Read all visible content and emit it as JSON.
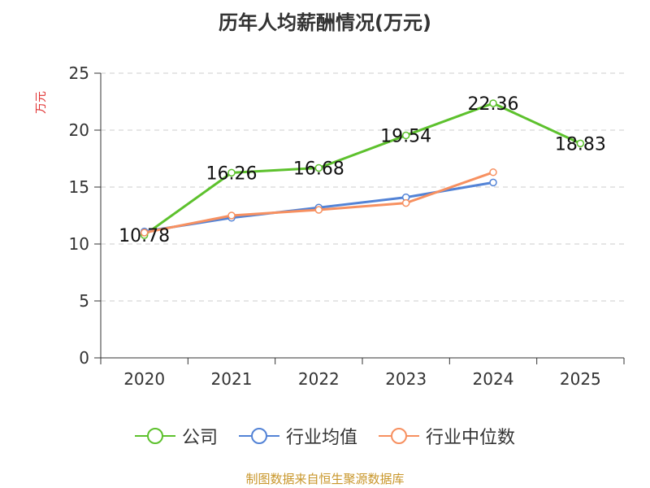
{
  "chart_data": {
    "type": "line",
    "title": "历年人均薪酬情况(万元)",
    "ylabel": "万元",
    "xlabel": "",
    "categories": [
      "2020",
      "2021",
      "2022",
      "2023",
      "2024",
      "2025"
    ],
    "ylim": [
      0,
      25
    ],
    "yticks": [
      0,
      5,
      10,
      15,
      20,
      25
    ],
    "grid": true,
    "legend_position": "bottom",
    "series": [
      {
        "name": "公司",
        "color": "#5dc12d",
        "values": [
          10.78,
          16.26,
          16.68,
          19.54,
          22.36,
          18.83
        ],
        "labels": [
          "10.78",
          "16.26",
          "16.68",
          "19.54",
          "22.36",
          "18.83"
        ]
      },
      {
        "name": "行业均值",
        "color": "#5383d6",
        "values": [
          11.1,
          12.3,
          13.2,
          14.1,
          15.4,
          null
        ]
      },
      {
        "name": "行业中位数",
        "color": "#f79060",
        "values": [
          11.0,
          12.5,
          13.0,
          13.6,
          16.3,
          null
        ]
      }
    ]
  },
  "source": "制图数据来自恒生聚源数据库"
}
